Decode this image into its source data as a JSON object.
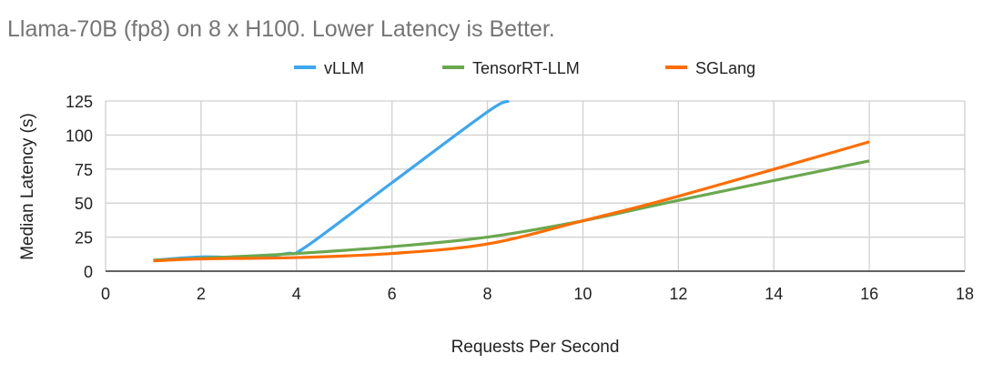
{
  "chart_data": {
    "type": "line",
    "title": "Llama-70B (fp8) on 8 x H100. Lower Latency is Better.",
    "xlabel": "Requests Per Second",
    "ylabel": "Median Latency (s)",
    "xlim": [
      0,
      18
    ],
    "ylim": [
      0,
      125
    ],
    "xticks": [
      "0",
      "2",
      "4",
      "6",
      "8",
      "10",
      "12",
      "14",
      "16",
      "18"
    ],
    "yticks": [
      "0",
      "25",
      "50",
      "75",
      "100",
      "125"
    ],
    "grid": true,
    "legend_position": "top",
    "series": [
      {
        "name": "vLLM",
        "color": "#3ea6f0",
        "x": [
          1,
          2,
          3,
          3.8,
          4.2,
          6,
          8,
          8.45
        ],
        "y": [
          8,
          10.5,
          10,
          13,
          18,
          65,
          117,
          125
        ]
      },
      {
        "name": "TensorRT-LLM",
        "color": "#6aa84f",
        "x": [
          1,
          2,
          4,
          6,
          8,
          10,
          12,
          16
        ],
        "y": [
          8,
          9.5,
          13,
          18,
          25,
          37,
          52,
          81
        ]
      },
      {
        "name": "SGLang",
        "color": "#ff6d01",
        "x": [
          1,
          2,
          4,
          6,
          8,
          10,
          12,
          16
        ],
        "y": [
          7.5,
          9,
          10,
          13,
          20,
          37,
          55,
          95
        ]
      }
    ]
  }
}
